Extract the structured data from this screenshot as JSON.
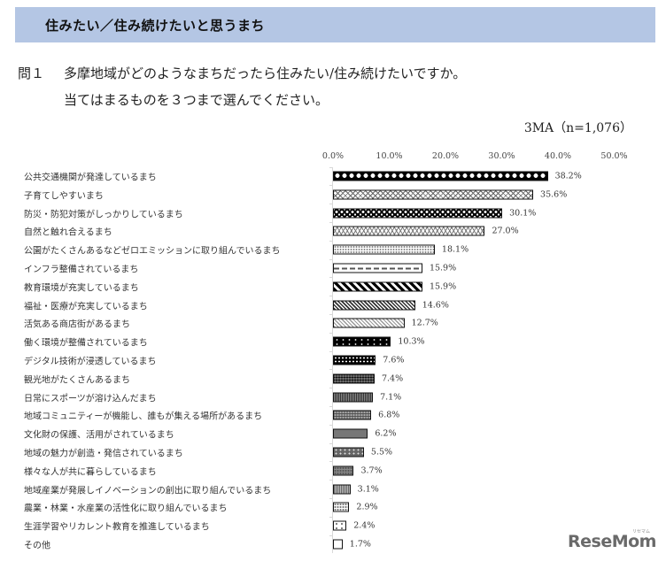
{
  "header": {
    "title": "住みたい／住み続けたいと思うまち",
    "band_color": "#b4c6e4"
  },
  "question": {
    "number": "問１",
    "line1": "多摩地域がどのようなまちだったら住みたい/住み続けたいですか。",
    "line2": "当てはまるものを３つまで選んでください。"
  },
  "sample_note": "3MA（n=1,076）",
  "axis": {
    "ticks": [
      "0.0%",
      "10.0%",
      "20.0%",
      "30.0%",
      "40.0%",
      "50.0%"
    ]
  },
  "rows": [
    {
      "label": "公共交通機関が発達しているまち",
      "value_label": "38.2%"
    },
    {
      "label": "子育てしやすいまち",
      "value_label": "35.6%"
    },
    {
      "label": "防災・防犯対策がしっかりしているまち",
      "value_label": "30.1%"
    },
    {
      "label": "自然と触れ合えるまち",
      "value_label": "27.0%"
    },
    {
      "label": "公園がたくさんあるなどゼロエミッションに取り組んでいるまち",
      "value_label": "18.1%"
    },
    {
      "label": "インフラ整備されているまち",
      "value_label": "15.9%"
    },
    {
      "label": "教育環境が充実しているまち",
      "value_label": "15.9%"
    },
    {
      "label": "福祉・医療が充実しているまち",
      "value_label": "14.6%"
    },
    {
      "label": "活気ある商店街があるまち",
      "value_label": "12.7%"
    },
    {
      "label": "働く環境が整備されているまち",
      "value_label": "10.3%"
    },
    {
      "label": "デジタル技術が浸透しているまち",
      "value_label": "7.6%"
    },
    {
      "label": "観光地がたくさんあるまち",
      "value_label": "7.4%"
    },
    {
      "label": "日常にスポーツが溶け込んだまち",
      "value_label": "7.1%"
    },
    {
      "label": "地域コミュニティーが機能し、誰もが集える場所があるまち",
      "value_label": "6.8%"
    },
    {
      "label": "文化財の保護、活用がされているまち",
      "value_label": "6.2%"
    },
    {
      "label": "地域の魅力が創造・発信されているまち",
      "value_label": "5.5%"
    },
    {
      "label": "様々な人が共に暮らしているまち",
      "value_label": "3.7%"
    },
    {
      "label": "地域産業が発展しイノベーションの創出に取り組んでいるまち",
      "value_label": "3.1%"
    },
    {
      "label": "農業・林業・水産業の活性化に取り組んでいるまち",
      "value_label": "2.9%"
    },
    {
      "label": "生涯学習やリカレント教育を推進しているまち",
      "value_label": "2.4%"
    },
    {
      "label": "その他",
      "value_label": "1.7%"
    }
  ],
  "logo": {
    "text": "ReseMom",
    "sub": "リセマム"
  },
  "chart_data": {
    "type": "bar",
    "orientation": "horizontal",
    "title": "住みたい／住み続けたいと思うまち",
    "subtitle": "問１ 多摩地域がどのようなまちだったら住みたい/住み続けたいですか。当てはまるものを３つまで選んでください。",
    "note": "3MA（n=1,076）",
    "xlabel": "",
    "ylabel": "",
    "xlim": [
      0,
      50
    ],
    "x_ticks": [
      "0.0%",
      "10.0%",
      "20.0%",
      "30.0%",
      "40.0%",
      "50.0%"
    ],
    "grid": false,
    "legend": null,
    "categories": [
      "公共交通機関が発達しているまち",
      "子育てしやすいまち",
      "防災・防犯対策がしっかりしているまち",
      "自然と触れ合えるまち",
      "公園がたくさんあるなどゼロエミッションに取り組んでいるまち",
      "インフラ整備されているまち",
      "教育環境が充実しているまち",
      "福祉・医療が充実しているまち",
      "活気ある商店街があるまち",
      "働く環境が整備されているまち",
      "デジタル技術が浸透しているまち",
      "観光地がたくさんあるまち",
      "日常にスポーツが溶け込んだまち",
      "地域コミュニティーが機能し、誰もが集える場所があるまち",
      "文化財の保護、活用がされているまち",
      "地域の魅力が創造・発信されているまち",
      "様々な人が共に暮らしているまち",
      "地域産業が発展しイノベーションの創出に取り組んでいるまち",
      "農業・林業・水産業の活性化に取り組んでいるまち",
      "生涯学習やリカレント教育を推進しているまち",
      "その他"
    ],
    "values": [
      38.2,
      35.6,
      30.1,
      27.0,
      18.1,
      15.9,
      15.9,
      14.6,
      12.7,
      10.3,
      7.6,
      7.4,
      7.1,
      6.8,
      6.2,
      5.5,
      3.7,
      3.1,
      2.9,
      2.4,
      1.7
    ],
    "unit": "%"
  }
}
